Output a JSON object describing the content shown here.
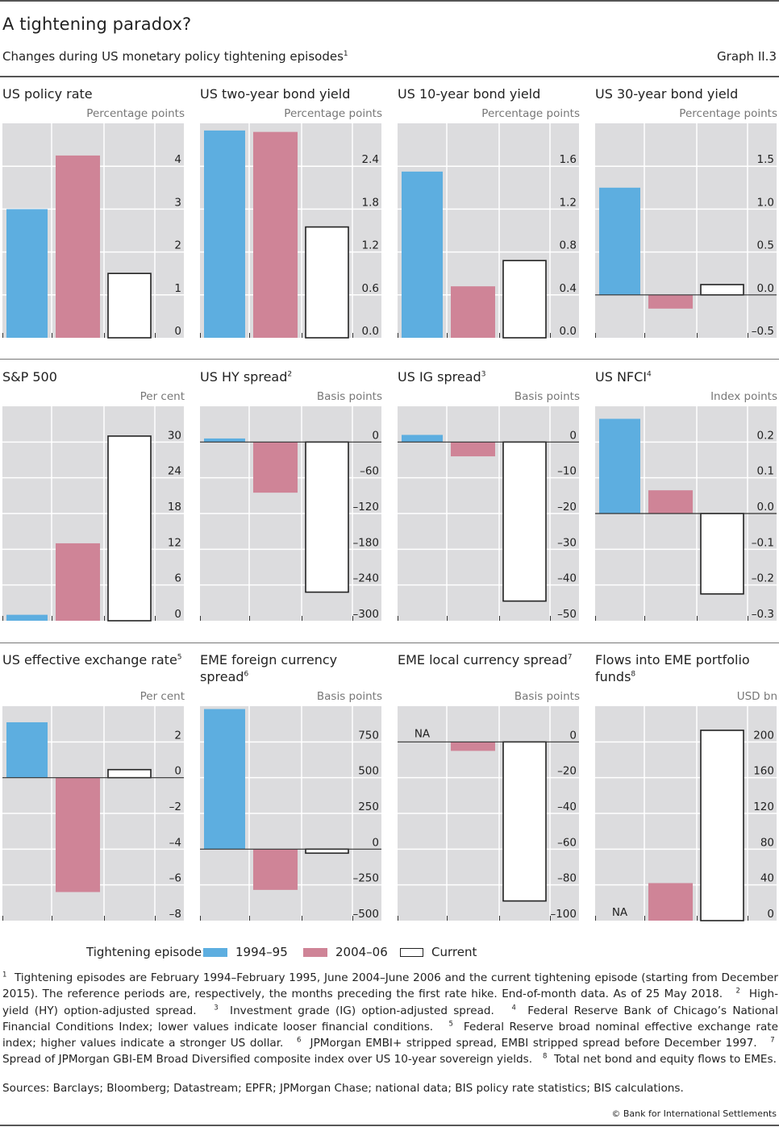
{
  "header": {
    "title": "A tightening paradox?",
    "subtitle": "Changes during US monetary policy tightening episodes",
    "subtitle_footnote": "1",
    "graph_number": "Graph II.3"
  },
  "colors": {
    "s1994": "#5daee0",
    "s2004": "#cf8497",
    "current_fill": "#ffffff",
    "current_stroke": "#222222",
    "plot_bg": "#dcdcde",
    "grid": "#ffffff",
    "zero_line": "#333333"
  },
  "legend": {
    "label": "Tightening episode:",
    "items": [
      {
        "name": "1994–95",
        "key": "s1994"
      },
      {
        "name": "2004–06",
        "key": "s2004"
      },
      {
        "name": "Current",
        "key": "current"
      }
    ]
  },
  "chart_data": [
    {
      "type": "bar",
      "title": "US policy rate",
      "footnote": "",
      "unit": "Percentage points",
      "categories": [
        "1994–95",
        "2004–06",
        "Current"
      ],
      "values": [
        3.0,
        4.25,
        1.5
      ],
      "ylim": [
        0,
        5
      ],
      "ticks": [
        0,
        1,
        2,
        3,
        4
      ],
      "tick_labels": [
        "0",
        "1",
        "2",
        "3",
        "4"
      ],
      "na": []
    },
    {
      "type": "bar",
      "title": "US two-year bond yield",
      "footnote": "",
      "unit": "Percentage points",
      "categories": [
        "1994–95",
        "2004–06",
        "Current"
      ],
      "values": [
        2.9,
        2.88,
        1.55
      ],
      "ylim": [
        0,
        3.0
      ],
      "ticks": [
        0,
        0.6,
        1.2,
        1.8,
        2.4
      ],
      "tick_labels": [
        "0.0",
        "0.6",
        "1.2",
        "1.8",
        "2.4"
      ],
      "na": []
    },
    {
      "type": "bar",
      "title": "US 10-year bond yield",
      "footnote": "",
      "unit": "Percentage points",
      "categories": [
        "1994–95",
        "2004–06",
        "Current"
      ],
      "values": [
        1.55,
        0.48,
        0.72
      ],
      "ylim": [
        0,
        2.0
      ],
      "ticks": [
        0,
        0.4,
        0.8,
        1.2,
        1.6
      ],
      "tick_labels": [
        "0.0",
        "0.4",
        "0.8",
        "1.2",
        "1.6"
      ],
      "na": []
    },
    {
      "type": "bar",
      "title": "US 30-year bond yield",
      "footnote": "",
      "unit": "Percentage points",
      "categories": [
        "1994–95",
        "2004–06",
        "Current"
      ],
      "values": [
        1.25,
        -0.16,
        0.12
      ],
      "ylim": [
        -0.5,
        2.0
      ],
      "ticks": [
        -0.5,
        0,
        0.5,
        1.0,
        1.5
      ],
      "tick_labels": [
        "–0.5",
        "0.0",
        "0.5",
        "1.0",
        "1.5"
      ],
      "na": []
    },
    {
      "type": "bar",
      "title": "S&P 500",
      "footnote": "",
      "unit": "Per cent",
      "categories": [
        "1994–95",
        "2004–06",
        "Current"
      ],
      "values": [
        1.0,
        13.0,
        31.0
      ],
      "ylim": [
        0,
        36
      ],
      "ticks": [
        0,
        6,
        12,
        18,
        24,
        30
      ],
      "tick_labels": [
        "0",
        "6",
        "12",
        "18",
        "24",
        "30"
      ],
      "na": []
    },
    {
      "type": "bar",
      "title": "US HY spread",
      "footnote": "2",
      "unit": "Basis points",
      "categories": [
        "1994–95",
        "2004–06",
        "Current"
      ],
      "values": [
        6,
        -85,
        -252
      ],
      "ylim": [
        -300,
        60
      ],
      "ticks": [
        -300,
        -240,
        -180,
        -120,
        -60,
        0
      ],
      "tick_labels": [
        "–300",
        "–240",
        "–180",
        "–120",
        "–60",
        "0"
      ],
      "na": []
    },
    {
      "type": "bar",
      "title": "US IG spread",
      "footnote": "3",
      "unit": "Basis points",
      "categories": [
        "1994–95",
        "2004–06",
        "Current"
      ],
      "values": [
        2,
        -4,
        -44.5
      ],
      "ylim": [
        -50,
        10
      ],
      "ticks": [
        -50,
        -40,
        -30,
        -20,
        -10,
        0
      ],
      "tick_labels": [
        "–50",
        "–40",
        "–30",
        "–20",
        "–10",
        "0"
      ],
      "na": []
    },
    {
      "type": "bar",
      "title": "US NFCI",
      "footnote": "4",
      "unit": "Index points",
      "categories": [
        "1994–95",
        "2004–06",
        "Current"
      ],
      "values": [
        0.265,
        0.065,
        -0.225
      ],
      "ylim": [
        -0.3,
        0.3
      ],
      "ticks": [
        -0.3,
        -0.2,
        -0.1,
        0,
        0.1,
        0.2
      ],
      "tick_labels": [
        "–0.3",
        "–0.2",
        "–0.1",
        "0.0",
        "0.1",
        "0.2"
      ],
      "na": []
    },
    {
      "type": "bar",
      "title": "US effective exchange rate",
      "footnote": "5",
      "unit": "Per cent",
      "categories": [
        "1994–95",
        "2004–06",
        "Current"
      ],
      "values": [
        3.1,
        -6.4,
        0.45
      ],
      "ylim": [
        -8,
        4
      ],
      "ticks": [
        -8,
        -6,
        -4,
        -2,
        0,
        2
      ],
      "tick_labels": [
        "–8",
        "–6",
        "–4",
        "–2",
        "0",
        "2"
      ],
      "na": []
    },
    {
      "type": "bar",
      "title": "EME foreign currency spread",
      "footnote": "6",
      "unit": "Basis points",
      "categories": [
        "1994–95",
        "2004–06",
        "Current"
      ],
      "values": [
        980,
        -285,
        -28
      ],
      "ylim": [
        -500,
        1000
      ],
      "ticks": [
        -500,
        -250,
        0,
        250,
        500,
        750
      ],
      "tick_labels": [
        "–500",
        "–250",
        "0",
        "250",
        "500",
        "750"
      ],
      "na": []
    },
    {
      "type": "bar",
      "title": "EME local currency spread",
      "footnote": "7",
      "unit": "Basis points",
      "categories": [
        "1994–95",
        "2004–06",
        "Current"
      ],
      "values": [
        null,
        -5,
        -89
      ],
      "ylim": [
        -100,
        20
      ],
      "ticks": [
        -100,
        -80,
        -60,
        -40,
        -20,
        0
      ],
      "tick_labels": [
        "–100",
        "–80",
        "–60",
        "–40",
        "–20",
        "0"
      ],
      "na": [
        "NA"
      ]
    },
    {
      "type": "bar",
      "title": "Flows into EME portfolio funds",
      "footnote": "8",
      "unit": "USD bn",
      "categories": [
        "1994–95",
        "2004–06",
        "Current"
      ],
      "values": [
        null,
        42,
        213
      ],
      "ylim": [
        0,
        240
      ],
      "ticks": [
        0,
        40,
        80,
        120,
        160,
        200
      ],
      "tick_labels": [
        "0",
        "40",
        "80",
        "120",
        "160",
        "200"
      ],
      "na": [
        "NA"
      ]
    }
  ],
  "footnotes": [
    {
      "n": "1",
      "text": "Tightening episodes are February 1994–February 1995, June 2004–June 2006 and the current tightening episode (starting from December 2015). The reference periods are, respectively, the months preceding the first rate hike. End-of-month data. As of 25 May 2018."
    },
    {
      "n": "2",
      "text": "High-yield (HY) option-adjusted spread."
    },
    {
      "n": "3",
      "text": "Investment grade (IG) option-adjusted spread."
    },
    {
      "n": "4",
      "text": "Federal Reserve Bank of Chicago’s National Financial Conditions Index; lower values indicate looser financial conditions."
    },
    {
      "n": "5",
      "text": "Federal Reserve broad nominal effective exchange rate index; higher values indicate a stronger US dollar."
    },
    {
      "n": "6",
      "text": "JPMorgan EMBI+ stripped spread, EMBI stripped spread before December 1997."
    },
    {
      "n": "7",
      "text": "Spread of JPMorgan GBI-EM Broad Diversified composite index over US 10-year sovereign yields."
    },
    {
      "n": "8",
      "text": "Total net bond and equity flows to EMEs."
    }
  ],
  "sources": "Sources: Barclays; Bloomberg; Datastream; EPFR; JPMorgan Chase; national data; BIS policy rate statistics; BIS calculations.",
  "copyright": "© Bank for International Settlements"
}
